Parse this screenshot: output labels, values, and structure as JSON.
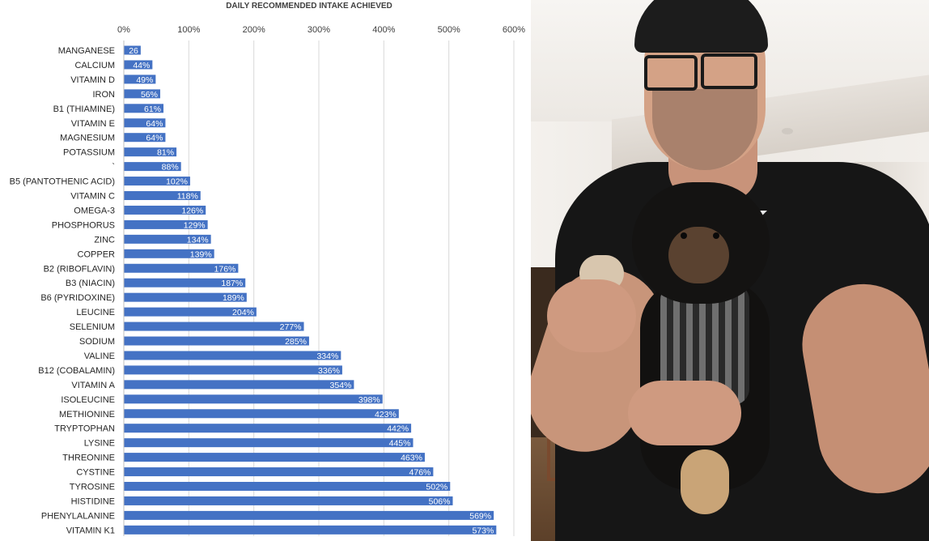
{
  "chart_data": {
    "type": "bar",
    "orientation": "horizontal",
    "title": "DAILY RECOMMENDED INTAKE ACHIEVED",
    "xlim": [
      0,
      600
    ],
    "ticks": [
      "0%",
      "100%",
      "200%",
      "300%",
      "400%",
      "500%",
      "600%"
    ],
    "tick_values": [
      0,
      100,
      200,
      300,
      400,
      500,
      600
    ],
    "grid": true,
    "bar_color": "#4472c4",
    "categories": [
      "MANGANESE",
      "CALCIUM",
      "VITAMIN D",
      "IRON",
      "B1 (THIAMINE)",
      "VITAMIN E",
      "MAGNESIUM",
      "POTASSIUM",
      "`",
      "B5 (PANTOTHENIC ACID)",
      "VITAMIN C",
      "OMEGA-3",
      "PHOSPHORUS",
      "ZINC",
      "COPPER",
      "B2 (RIBOFLAVIN)",
      "B3 (NIACIN)",
      "B6 (PYRIDOXINE)",
      "LEUCINE",
      "SELENIUM",
      "SODIUM",
      "VALINE",
      "B12 (COBALAMIN)",
      "VITAMIN A",
      "ISOLEUCINE",
      "METHIONINE",
      "TRYPTOPHAN",
      "LYSINE",
      "THREONINE",
      "CYSTINE",
      "TYROSINE",
      "HISTIDINE",
      "PHENYLALANINE",
      "VITAMIN K1"
    ],
    "values": [
      26,
      44,
      49,
      56,
      61,
      64,
      64,
      81,
      88,
      102,
      118,
      126,
      129,
      134,
      139,
      176,
      187,
      189,
      204,
      277,
      285,
      334,
      336,
      354,
      398,
      423,
      442,
      445,
      463,
      476,
      502,
      506,
      569,
      573
    ],
    "data_labels": [
      "26",
      "44%",
      "49%",
      "56%",
      "61%",
      "64%",
      "64%",
      "81%",
      "88%",
      "102%",
      "118%",
      "126%",
      "129%",
      "134%",
      "139%",
      "176%",
      "187%",
      "189%",
      "204%",
      "277%",
      "285%",
      "334%",
      "336%",
      "354%",
      "398%",
      "423%",
      "442%",
      "445%",
      "463%",
      "476%",
      "502%",
      "506%",
      "569%",
      "573%"
    ]
  },
  "photo": {
    "icons": [
      "brand-logo-icon"
    ]
  }
}
